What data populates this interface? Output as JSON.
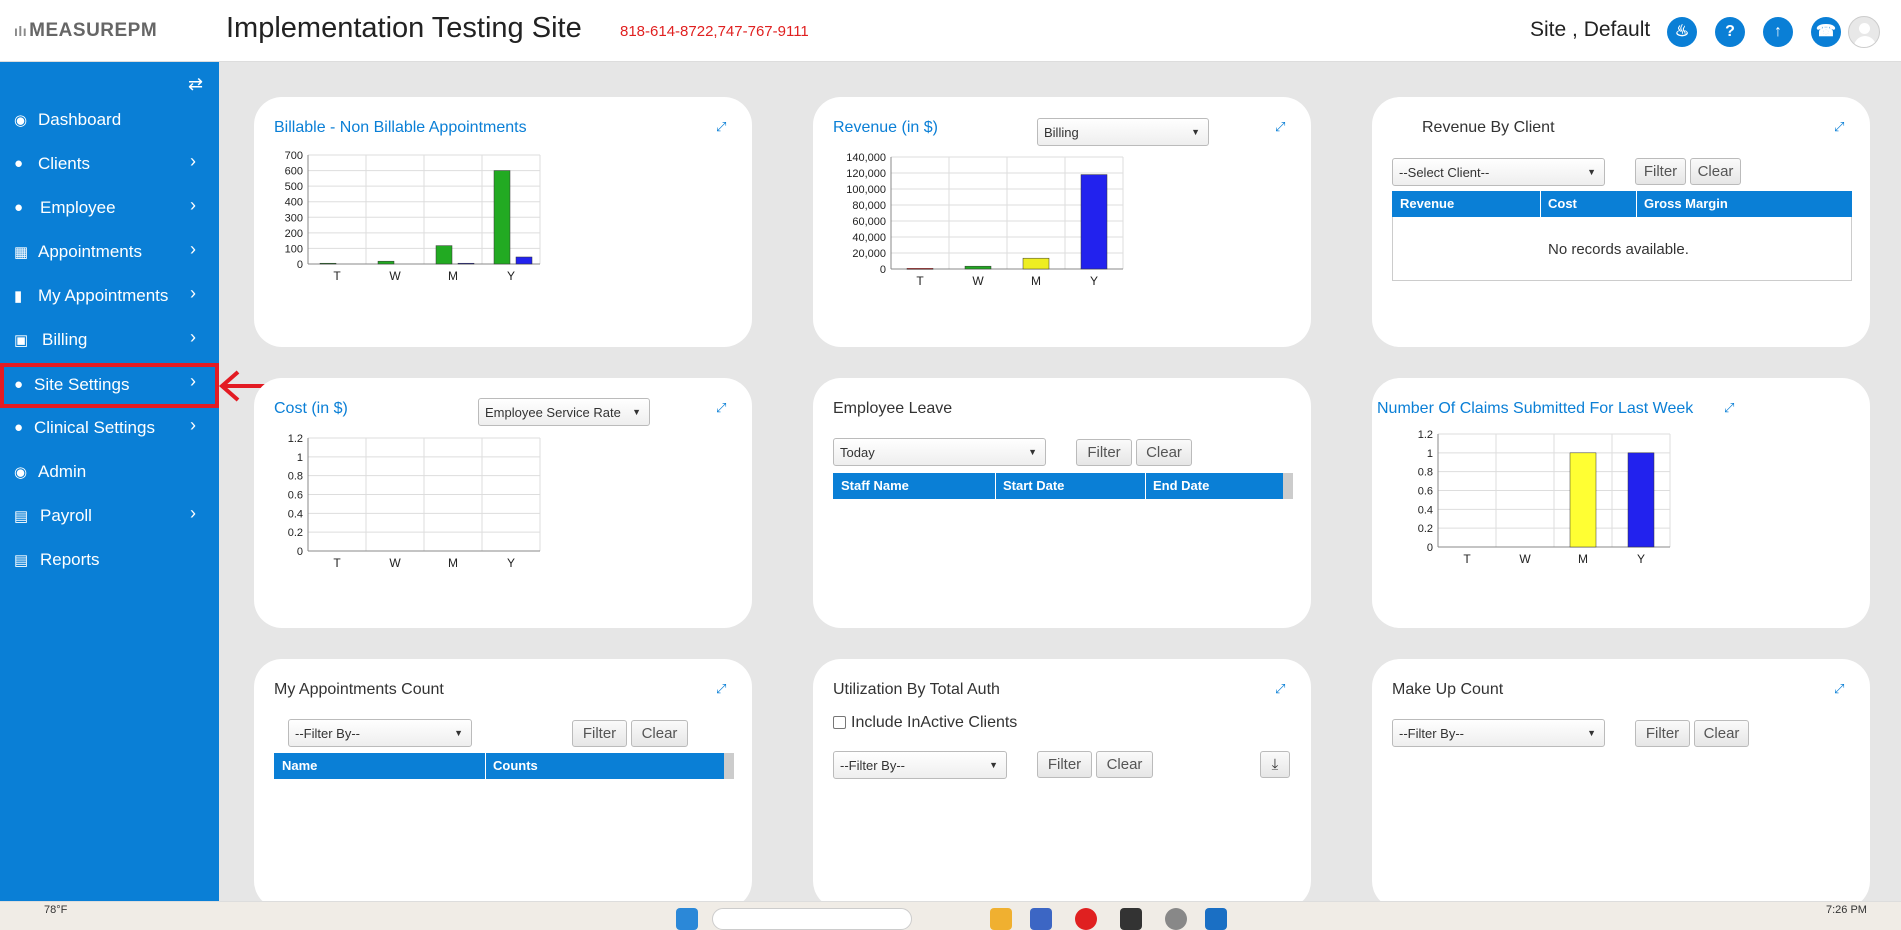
{
  "header": {
    "logo": "MEASUREPM",
    "site_title": "Implementation Testing Site",
    "phones": "818-614-8722,747-767-9111",
    "user_name": "Site , Default"
  },
  "sidebar": {
    "items": [
      {
        "label": "Dashboard",
        "icon": "dashboard-icon"
      },
      {
        "label": "Clients",
        "icon": "user-icon"
      },
      {
        "label": "Employee",
        "icon": "users-icon"
      },
      {
        "label": "Appointments",
        "icon": "calendar-icon"
      },
      {
        "label": "My Appointments",
        "icon": "book-icon"
      },
      {
        "label": "Billing",
        "icon": "money-icon"
      },
      {
        "label": "Site Settings",
        "icon": "user-icon"
      },
      {
        "label": "Clinical Settings",
        "icon": "user-icon"
      },
      {
        "label": "Admin",
        "icon": "user-circle-icon"
      },
      {
        "label": "Payroll",
        "icon": "credit-card-icon"
      },
      {
        "label": "Reports",
        "icon": "credit-card-icon"
      }
    ]
  },
  "cards": {
    "billable": {
      "title": "Billable - Non Billable Appointments"
    },
    "revenue": {
      "title": "Revenue (in $)",
      "select": "Billing"
    },
    "revenue_client": {
      "title": "Revenue By Client",
      "select": "--Select Client--",
      "filter": "Filter",
      "clear": "Clear",
      "columns": [
        "Revenue",
        "Cost",
        "Gross Margin"
      ],
      "empty": "No records available."
    },
    "cost": {
      "title": "Cost (in $)",
      "select": "Employee Service Rate"
    },
    "leave": {
      "title": "Employee Leave",
      "select": "Today",
      "filter": "Filter",
      "clear": "Clear",
      "columns": [
        "Staff Name",
        "Start Date",
        "End Date"
      ]
    },
    "claims": {
      "title": "Number Of Claims Submitted For Last Week"
    },
    "my_appts": {
      "title": "My Appointments Count",
      "select": "--Filter By--",
      "filter": "Filter",
      "clear": "Clear",
      "columns": [
        "Name",
        "Counts"
      ]
    },
    "utilization": {
      "title": "Utilization By Total Auth",
      "checkbox": "Include InActive Clients",
      "select": "--Filter By--",
      "filter": "Filter",
      "clear": "Clear"
    },
    "makeup": {
      "title": "Make Up Count",
      "select": "--Filter By--",
      "filter": "Filter",
      "clear": "Clear"
    }
  },
  "chart_data": [
    {
      "type": "bar",
      "categories": [
        "T",
        "W",
        "M",
        "Y"
      ],
      "series": [
        {
          "values": [
            5,
            18,
            118,
            600
          ],
          "color": "#22aa22"
        },
        {
          "values": [
            0,
            0,
            5,
            45
          ],
          "color": "#2222ee"
        }
      ],
      "ylim": [
        0,
        700
      ],
      "yticks": [
        "0",
        "100",
        "200",
        "300",
        "400",
        "500",
        "600",
        "700"
      ]
    },
    {
      "type": "bar",
      "categories": [
        "T",
        "W",
        "M",
        "Y"
      ],
      "values": [
        800,
        3500,
        13500,
        118000
      ],
      "colors": [
        "#dd2222",
        "#22aa22",
        "#eeee22",
        "#2222ee"
      ],
      "ylim": [
        0,
        140000
      ],
      "yticks": [
        "0",
        "20,000",
        "40,000",
        "60,000",
        "80,000",
        "100,000",
        "120,000",
        "140,000"
      ]
    },
    {
      "type": "bar",
      "categories": [
        "T",
        "W",
        "M",
        "Y"
      ],
      "values": [
        0,
        0,
        0,
        0
      ],
      "ylim": [
        0,
        1.2
      ],
      "yticks": [
        "0",
        "0.2",
        "0.4",
        "0.6",
        "0.8",
        "1",
        "1.2"
      ]
    },
    {
      "type": "bar",
      "categories": [
        "T",
        "W",
        "M",
        "Y"
      ],
      "values": [
        0,
        0,
        1,
        1
      ],
      "colors": [
        "#dd2222",
        "#22aa22",
        "#ffff33",
        "#2222ee"
      ],
      "ylim": [
        0,
        1.2
      ],
      "yticks": [
        "0",
        "0.2",
        "0.4",
        "0.6",
        "0.8",
        "1",
        "1.2"
      ]
    }
  ],
  "taskbar": {
    "temp": "78°F",
    "time": "7:26 PM"
  }
}
